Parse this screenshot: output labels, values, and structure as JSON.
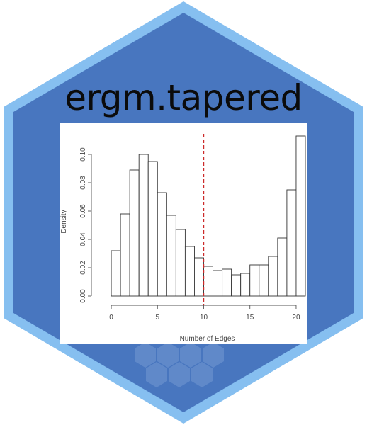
{
  "sticker": {
    "title": "ergm.tapered",
    "colors": {
      "hex_border": "#86bff0",
      "hex_fill": "#4876bf",
      "title_text": "#0b0b0b",
      "marker_line": "#cc2a2a"
    }
  },
  "chart_data": {
    "type": "bar",
    "title": "",
    "xlabel": "Number of Edges",
    "ylabel": "Density",
    "xlim": [
      -1,
      21
    ],
    "ylim": [
      0,
      0.115
    ],
    "x_ticks": [
      0,
      5,
      10,
      15,
      20
    ],
    "y_ticks": [
      0.0,
      0.02,
      0.04,
      0.06,
      0.08,
      0.1
    ],
    "x_tick_labels": [
      "0",
      "5",
      "10",
      "15",
      "20"
    ],
    "y_tick_labels": [
      "0.00",
      "0.02",
      "0.04",
      "0.06",
      "0.08",
      "0.10"
    ],
    "bin_edges": [
      0,
      1,
      2,
      3,
      4,
      5,
      6,
      7,
      8,
      9,
      10,
      11,
      12,
      13,
      14,
      15,
      16,
      17,
      18,
      19,
      20,
      21
    ],
    "values": [
      0.032,
      0.058,
      0.089,
      0.1,
      0.095,
      0.073,
      0.057,
      0.047,
      0.035,
      0.027,
      0.021,
      0.018,
      0.019,
      0.015,
      0.016,
      0.022,
      0.022,
      0.028,
      0.041,
      0.075,
      0.113
    ],
    "reference_line_x": 10,
    "grid": false
  }
}
